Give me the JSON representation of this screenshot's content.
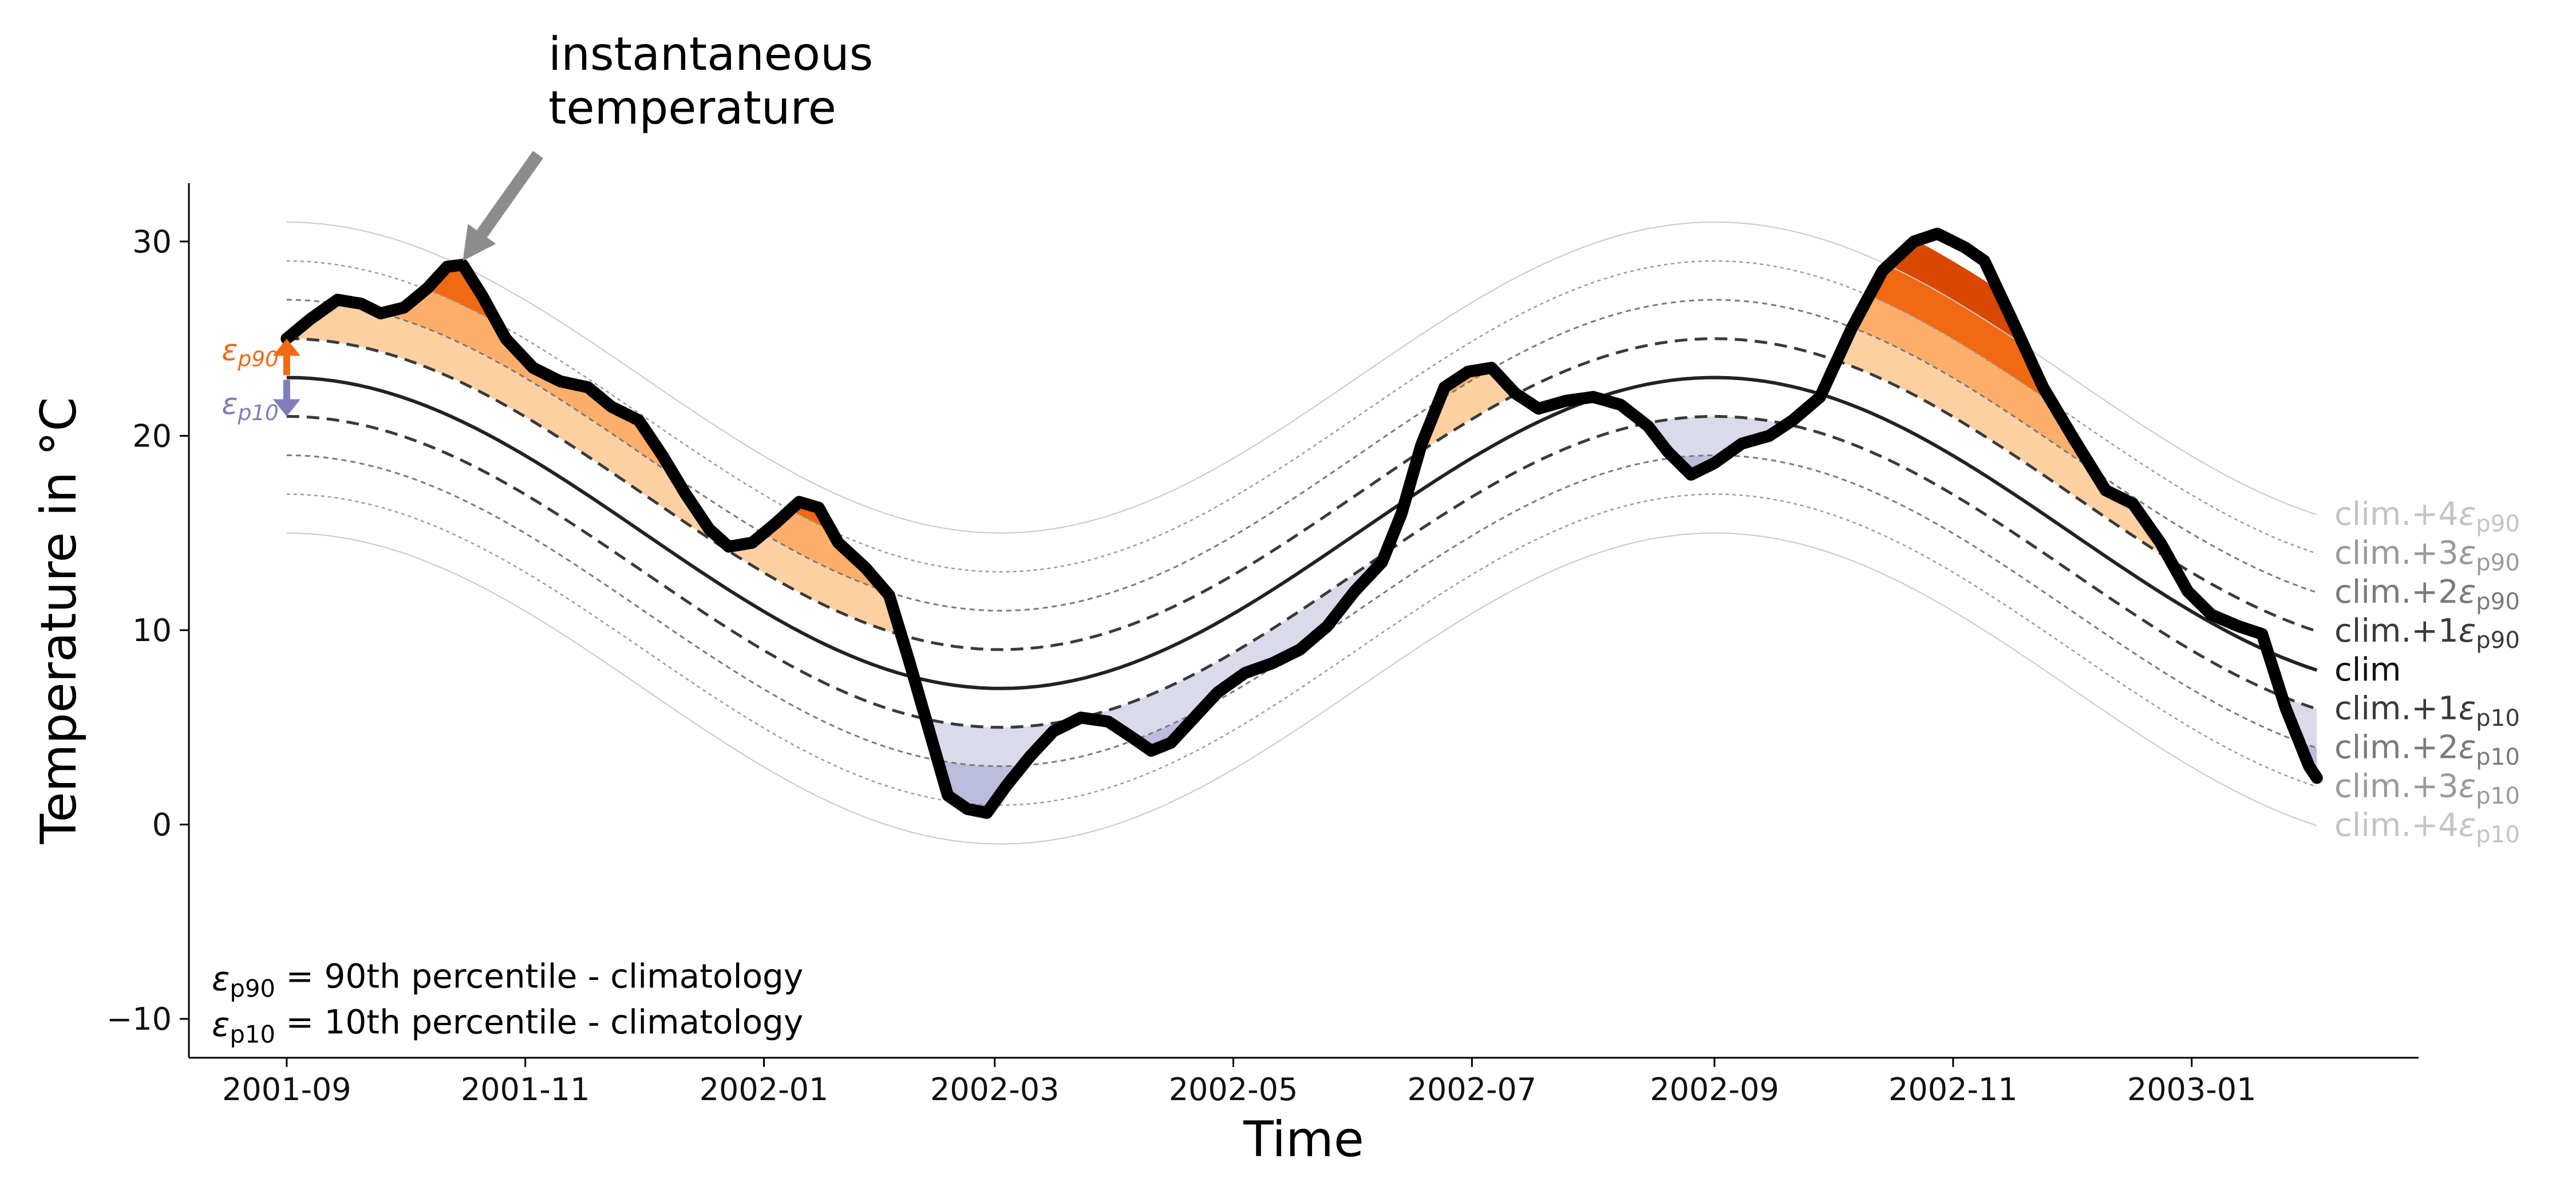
{
  "chart_data": {
    "type": "line",
    "xlabel": "Time",
    "ylabel": "Temperature in °C",
    "ylim": [
      -12,
      33
    ],
    "xlim": [
      "2001-08-07",
      "2003-02-28"
    ],
    "yticks": [
      30,
      20,
      10,
      0,
      -10
    ],
    "ytick_labels": [
      "30",
      "20",
      "10",
      "0",
      "−10"
    ],
    "xticks": [
      "2001-09-01",
      "2001-11-01",
      "2002-01-01",
      "2002-03-01",
      "2002-05-01",
      "2002-07-01",
      "2002-09-01",
      "2002-11-01",
      "2003-01-01"
    ],
    "xtick_labels": [
      "2001-09",
      "2001-11",
      "2002-01",
      "2002-03",
      "2002-05",
      "2002-07",
      "2002-09",
      "2002-11",
      "2003-01"
    ],
    "climatology": {
      "model": "sinusoid",
      "mean": 15,
      "amplitude": 8,
      "peak_date": "2002-09-01",
      "period_days": 365,
      "line_color": "#222222"
    },
    "epsilon": {
      "p90": 2,
      "p10": -2
    },
    "bands": [
      {
        "label": "clim.+4ε",
        "sub": "p90",
        "k": 4,
        "sign": 1,
        "color": "#c8c8c8",
        "label_color": "#c4c4c4",
        "dash": "",
        "width": 2
      },
      {
        "label": "clim.+3ε",
        "sub": "p90",
        "k": 3,
        "sign": 1,
        "color": "#9a9a9a",
        "label_color": "#9a9a9a",
        "dash": "6,6",
        "width": 2.5
      },
      {
        "label": "clim.+2ε",
        "sub": "p90",
        "k": 2,
        "sign": 1,
        "color": "#7a7a7a",
        "label_color": "#7a7a7a",
        "dash": "9,7",
        "width": 3
      },
      {
        "label": "clim.+1ε",
        "sub": "p90",
        "k": 1,
        "sign": 1,
        "color": "#3a3a3a",
        "label_color": "#3a3a3a",
        "dash": "22,13",
        "width": 5
      },
      {
        "label": "clim",
        "sub": "",
        "k": 0,
        "sign": 0,
        "color": "#222222",
        "label_color": "#111111",
        "dash": "",
        "width": 6
      },
      {
        "label": "clim.+1ε",
        "sub": "p10",
        "k": 1,
        "sign": -1,
        "color": "#3a3a3a",
        "label_color": "#3a3a3a",
        "dash": "22,13",
        "width": 5
      },
      {
        "label": "clim.+2ε",
        "sub": "p10",
        "k": 2,
        "sign": -1,
        "color": "#7a7a7a",
        "label_color": "#7a7a7a",
        "dash": "9,7",
        "width": 3
      },
      {
        "label": "clim.+3ε",
        "sub": "p10",
        "k": 3,
        "sign": -1,
        "color": "#9a9a9a",
        "label_color": "#9a9a9a",
        "dash": "6,6",
        "width": 2.5
      },
      {
        "label": "clim.+4ε",
        "sub": "p10",
        "k": 4,
        "sign": -1,
        "color": "#c8c8c8",
        "label_color": "#c4c4c4",
        "dash": "",
        "width": 2
      }
    ],
    "fill_colors": {
      "hot": [
        "#fdd0a2",
        "#fdae6b",
        "#f16913",
        "#d94801"
      ],
      "cold": [
        "#dadaeb",
        "#bcbddc",
        "#9e9ac8",
        "#807dba"
      ]
    },
    "instantaneous_temperature": {
      "color": "#000000",
      "points": [
        [
          "2001-09-01",
          25.0
        ],
        [
          "2001-09-07",
          26.0
        ],
        [
          "2001-09-14",
          27.0
        ],
        [
          "2001-09-20",
          26.8
        ],
        [
          "2001-09-25",
          26.3
        ],
        [
          "2001-10-01",
          26.6
        ],
        [
          "2001-10-07",
          27.6
        ],
        [
          "2001-10-12",
          28.7
        ],
        [
          "2001-10-16",
          28.8
        ],
        [
          "2001-10-21",
          27.2
        ],
        [
          "2001-10-27",
          25.0
        ],
        [
          "2001-11-03",
          23.5
        ],
        [
          "2001-11-10",
          22.8
        ],
        [
          "2001-11-17",
          22.5
        ],
        [
          "2001-11-23",
          21.5
        ],
        [
          "2001-11-30",
          20.8
        ],
        [
          "2001-12-06",
          19.0
        ],
        [
          "2001-12-12",
          17.0
        ],
        [
          "2001-12-18",
          15.2
        ],
        [
          "2001-12-23",
          14.3
        ],
        [
          "2001-12-29",
          14.5
        ],
        [
          "2002-01-04",
          15.5
        ],
        [
          "2002-01-10",
          16.6
        ],
        [
          "2002-01-15",
          16.3
        ],
        [
          "2002-01-20",
          14.5
        ],
        [
          "2002-01-27",
          13.2
        ],
        [
          "2002-02-02",
          11.8
        ],
        [
          "2002-02-07",
          8.5
        ],
        [
          "2002-02-12",
          5.0
        ],
        [
          "2002-02-17",
          1.5
        ],
        [
          "2002-02-22",
          0.8
        ],
        [
          "2002-02-27",
          0.6
        ],
        [
          "2002-03-04",
          2.0
        ],
        [
          "2002-03-10",
          3.5
        ],
        [
          "2002-03-16",
          4.8
        ],
        [
          "2002-03-23",
          5.5
        ],
        [
          "2002-03-30",
          5.3
        ],
        [
          "2002-04-05",
          4.5
        ],
        [
          "2002-04-10",
          3.8
        ],
        [
          "2002-04-15",
          4.2
        ],
        [
          "2002-04-21",
          5.5
        ],
        [
          "2002-04-27",
          6.8
        ],
        [
          "2002-05-04",
          7.8
        ],
        [
          "2002-05-11",
          8.3
        ],
        [
          "2002-05-18",
          9.0
        ],
        [
          "2002-05-25",
          10.2
        ],
        [
          "2002-06-01",
          12.0
        ],
        [
          "2002-06-08",
          13.5
        ],
        [
          "2002-06-13",
          16.0
        ],
        [
          "2002-06-18",
          19.5
        ],
        [
          "2002-06-24",
          22.5
        ],
        [
          "2002-06-30",
          23.3
        ],
        [
          "2002-07-06",
          23.5
        ],
        [
          "2002-07-12",
          22.2
        ],
        [
          "2002-07-18",
          21.4
        ],
        [
          "2002-07-25",
          21.8
        ],
        [
          "2002-08-01",
          22.0
        ],
        [
          "2002-08-08",
          21.6
        ],
        [
          "2002-08-15",
          20.5
        ],
        [
          "2002-08-20",
          19.2
        ],
        [
          "2002-08-26",
          18.0
        ],
        [
          "2002-09-01",
          18.6
        ],
        [
          "2002-09-08",
          19.6
        ],
        [
          "2002-09-15",
          20.0
        ],
        [
          "2002-09-21",
          20.8
        ],
        [
          "2002-09-28",
          22.0
        ],
        [
          "2002-10-06",
          25.5
        ],
        [
          "2002-10-14",
          28.5
        ],
        [
          "2002-10-22",
          30.0
        ],
        [
          "2002-10-28",
          30.4
        ],
        [
          "2002-11-04",
          29.7
        ],
        [
          "2002-11-09",
          29.0
        ],
        [
          "2002-11-16",
          26.0
        ],
        [
          "2002-11-24",
          22.5
        ],
        [
          "2002-12-02",
          19.8
        ],
        [
          "2002-12-10",
          17.2
        ],
        [
          "2002-12-17",
          16.5
        ],
        [
          "2002-12-24",
          14.5
        ],
        [
          "2002-12-31",
          12.0
        ],
        [
          "2003-01-06",
          10.8
        ],
        [
          "2003-01-13",
          10.2
        ],
        [
          "2003-01-19",
          9.8
        ],
        [
          "2003-01-25",
          6.0
        ],
        [
          "2003-01-31",
          3.0
        ],
        [
          "2003-02-02",
          2.4
        ]
      ]
    },
    "callout": {
      "lines": [
        "instantaneous",
        "temperature"
      ],
      "target": [
        "2001-10-16",
        29.0
      ]
    },
    "epsilon_marker": {
      "date": "2001-09-01",
      "p90_label": "ε",
      "p90_sub": "p90",
      "p10_label": "ε",
      "p10_sub": "p10",
      "p90_color": "#f16913",
      "p10_color": "#807dba"
    },
    "notes": [
      {
        "symbol": "ε",
        "sub": "p90",
        "text": " = 90th percentile - climatology"
      },
      {
        "symbol": "ε",
        "sub": "p10",
        "text": " = 10th percentile - climatology"
      }
    ]
  }
}
